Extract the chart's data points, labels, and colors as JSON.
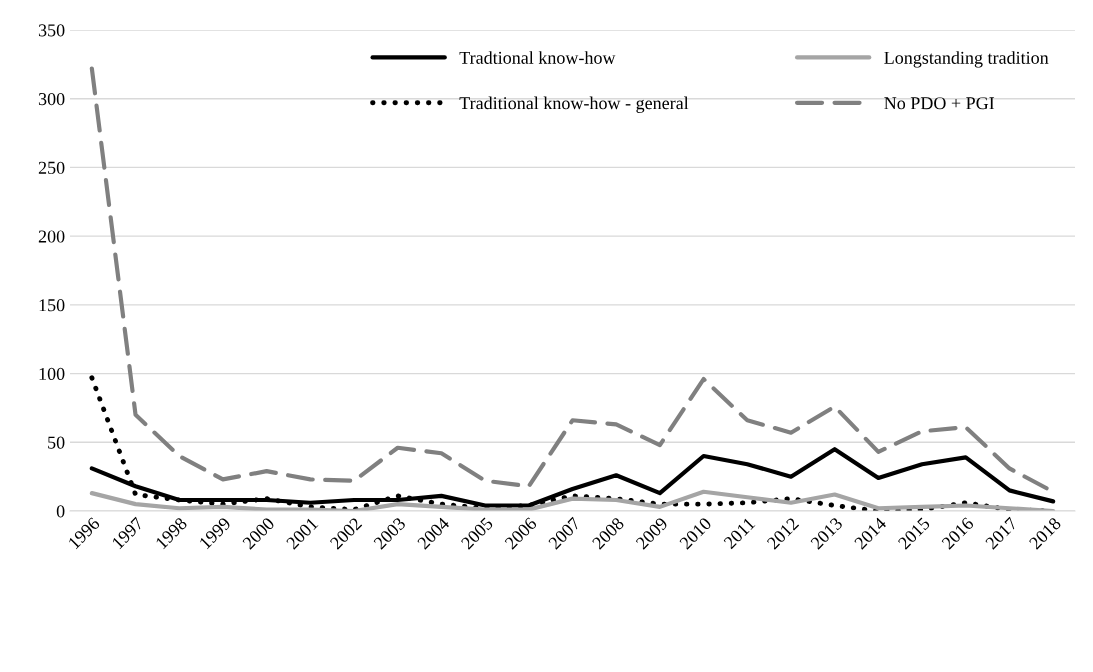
{
  "chart_data": {
    "type": "line",
    "categories": [
      "1996",
      "1997",
      "1998",
      "1999",
      "2000",
      "2001",
      "2002",
      "2003",
      "2004",
      "2005",
      "2006",
      "2007",
      "2008",
      "2009",
      "2010",
      "2011",
      "2012",
      "2013",
      "2014",
      "2015",
      "2016",
      "2017",
      "2018"
    ],
    "series": [
      {
        "name": "Tradtional know-how",
        "color": "#000000",
        "line_style": "solid",
        "values": [
          31,
          18,
          8,
          8,
          8,
          6,
          8,
          8,
          11,
          4,
          4,
          16,
          26,
          13,
          40,
          34,
          25,
          45,
          24,
          34,
          39,
          15,
          7
        ]
      },
      {
        "name": "Traditional know-how - general",
        "color": "#000000",
        "line_style": "dotted",
        "values": [
          97,
          12,
          8,
          5,
          9,
          3,
          1,
          11,
          5,
          2,
          4,
          11,
          9,
          5,
          5,
          6,
          9,
          4,
          0,
          1,
          6,
          1,
          0
        ]
      },
      {
        "name": "Longstanding tradition",
        "color": "#a5a5a5",
        "line_style": "solid",
        "values": [
          13,
          5,
          2,
          3,
          1,
          1,
          0,
          5,
          3,
          1,
          1,
          9,
          8,
          3,
          14,
          10,
          6,
          12,
          2,
          3,
          4,
          2,
          0
        ]
      },
      {
        "name": "No PDO + PGI",
        "color": "#808080",
        "line_style": "dashed",
        "values": [
          322,
          70,
          40,
          23,
          29,
          23,
          22,
          46,
          42,
          22,
          18,
          66,
          63,
          48,
          96,
          66,
          57,
          76,
          43,
          58,
          61,
          31,
          14
        ]
      }
    ],
    "ylim": [
      0,
      350
    ],
    "yticks": [
      0,
      50,
      100,
      150,
      200,
      250,
      300,
      350
    ],
    "grid": "y",
    "legend": "top right",
    "marker": "none"
  }
}
